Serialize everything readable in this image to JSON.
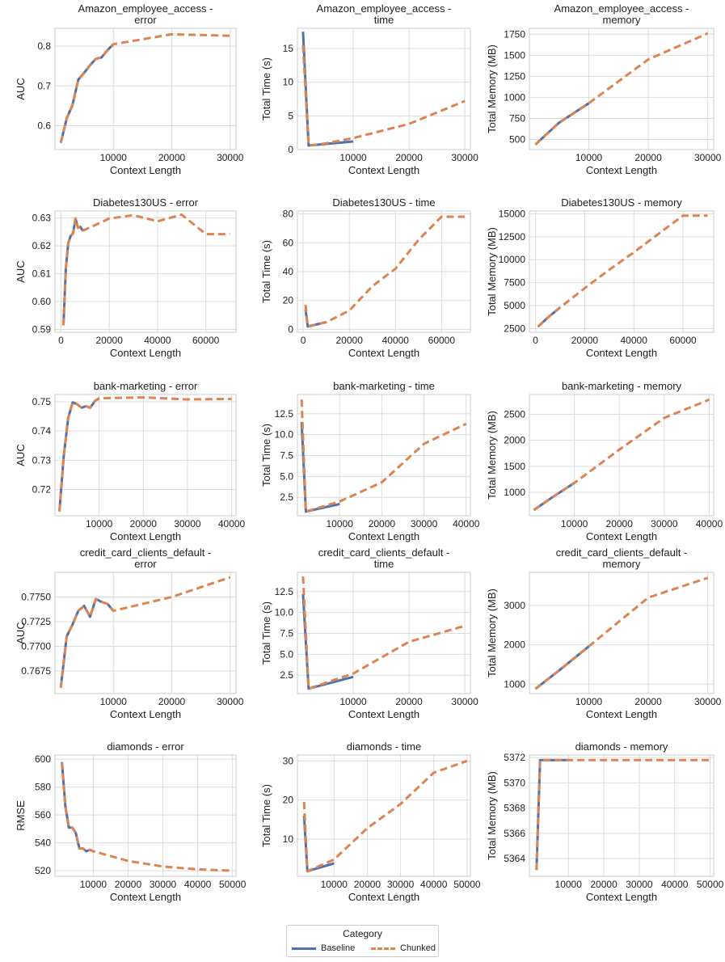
{
  "colors": {
    "baseline": "#4c72b0",
    "chunked": "#dd8452",
    "grid": "#dddddd",
    "axis": "#cccccc"
  },
  "legend": {
    "title": "Category",
    "baseline_label": "Baseline",
    "chunked_label": "Chunked"
  },
  "chart_data": [
    {
      "type": "line",
      "title": "Amazon_employee_access -\nerror",
      "xlabel": "Context Length",
      "ylabel": "AUC",
      "xlim": [
        0,
        31000
      ],
      "ylim": [
        0.54,
        0.845
      ],
      "xticks": [
        10000,
        20000,
        30000
      ],
      "yticks": [
        0.6,
        0.7,
        0.8
      ],
      "ytick_labels": [
        "0.6",
        "0.7",
        "0.8"
      ],
      "series": [
        {
          "name": "Baseline",
          "x": [
            1000,
            2000,
            3000,
            4000,
            5000,
            6000,
            7000,
            8000,
            9000,
            10000
          ],
          "y": [
            0.557,
            0.618,
            0.652,
            0.716,
            0.733,
            0.752,
            0.768,
            0.772,
            0.79,
            0.805
          ]
        },
        {
          "name": "Chunked",
          "x": [
            1000,
            2000,
            3000,
            4000,
            5000,
            6000,
            7000,
            8000,
            9000,
            10000,
            20000,
            30000
          ],
          "y": [
            0.557,
            0.618,
            0.652,
            0.716,
            0.733,
            0.752,
            0.768,
            0.772,
            0.79,
            0.805,
            0.83,
            0.826
          ]
        }
      ]
    },
    {
      "type": "line",
      "title": "Amazon_employee_access -\ntime",
      "xlabel": "Context Length",
      "ylabel": "Total Time (s)",
      "xlim": [
        0,
        31000
      ],
      "ylim": [
        0,
        18
      ],
      "xticks": [
        10000,
        20000,
        30000
      ],
      "yticks": [
        0,
        5,
        10,
        15
      ],
      "ytick_labels": [
        "0",
        "5",
        "10",
        "15"
      ],
      "series": [
        {
          "name": "Baseline",
          "x": [
            1000,
            2000,
            10000
          ],
          "y": [
            17.5,
            0.6,
            1.2
          ]
        },
        {
          "name": "Chunked",
          "x": [
            1000,
            2000,
            5000,
            10000,
            20000,
            30000
          ],
          "y": [
            15.5,
            0.6,
            0.9,
            1.7,
            3.8,
            7.2
          ]
        }
      ]
    },
    {
      "type": "line",
      "title": "Amazon_employee_access -\nmemory",
      "xlabel": "Context Length",
      "ylabel": "Total Memory (MB)",
      "xlim": [
        0,
        31000
      ],
      "ylim": [
        380,
        1820
      ],
      "xticks": [
        10000,
        20000,
        30000
      ],
      "yticks": [
        500,
        750,
        1000,
        1250,
        1500,
        1750
      ],
      "ytick_labels": [
        "500",
        "750",
        "1000",
        "1250",
        "1500",
        "1750"
      ],
      "series": [
        {
          "name": "Baseline",
          "x": [
            1000,
            5000,
            10000
          ],
          "y": [
            440,
            700,
            930
          ]
        },
        {
          "name": "Chunked",
          "x": [
            1000,
            5000,
            10000,
            20000,
            30000
          ],
          "y": [
            440,
            700,
            930,
            1450,
            1760
          ]
        }
      ]
    },
    {
      "type": "line",
      "title": "Diabetes130US - error",
      "xlabel": "Context Length",
      "ylabel": "AUC",
      "xlim": [
        -2500,
        72500
      ],
      "ylim": [
        0.589,
        0.6325
      ],
      "xticks": [
        0,
        20000,
        40000,
        60000
      ],
      "yticks": [
        0.59,
        0.6,
        0.61,
        0.62,
        0.63
      ],
      "ytick_labels": [
        "0.59",
        "0.60",
        "0.61",
        "0.62",
        "0.63"
      ],
      "series": [
        {
          "name": "Baseline",
          "x": [
            1000,
            2000,
            3000,
            4000,
            5000,
            6000,
            7000,
            8000,
            9000,
            10000
          ],
          "y": [
            0.5915,
            0.6115,
            0.621,
            0.6235,
            0.6245,
            0.6298,
            0.6265,
            0.6268,
            0.6255,
            0.6258
          ]
        },
        {
          "name": "Chunked",
          "x": [
            1000,
            2000,
            3000,
            4000,
            5000,
            6000,
            7000,
            8000,
            9000,
            10000,
            20000,
            30000,
            40000,
            50000,
            60000,
            70000
          ],
          "y": [
            0.5915,
            0.6115,
            0.621,
            0.6235,
            0.6245,
            0.6298,
            0.6265,
            0.6268,
            0.6255,
            0.6258,
            0.6298,
            0.631,
            0.6288,
            0.6312,
            0.6242,
            0.6242
          ]
        }
      ]
    },
    {
      "type": "line",
      "title": "Diabetes130US - time",
      "xlabel": "Context Length",
      "ylabel": "Total Time (s)",
      "xlim": [
        -2500,
        72500
      ],
      "ylim": [
        -2,
        82
      ],
      "xticks": [
        0,
        20000,
        40000,
        60000
      ],
      "yticks": [
        0,
        20,
        40,
        60,
        80
      ],
      "ytick_labels": [
        "0",
        "20",
        "40",
        "60",
        "80"
      ],
      "series": [
        {
          "name": "Baseline",
          "x": [
            1000,
            2000,
            10000
          ],
          "y": [
            14,
            2,
            5
          ]
        },
        {
          "name": "Chunked",
          "x": [
            1000,
            2000,
            10000,
            20000,
            30000,
            40000,
            50000,
            60000,
            70000
          ],
          "y": [
            17,
            2,
            5,
            13,
            30,
            42,
            62,
            78,
            78
          ]
        }
      ]
    },
    {
      "type": "line",
      "title": "Diabetes130US - memory",
      "xlabel": "Context Length",
      "ylabel": "Total Memory (MB)",
      "xlim": [
        -2500,
        72500
      ],
      "ylim": [
        2100,
        15300
      ],
      "xticks": [
        0,
        20000,
        40000,
        60000
      ],
      "yticks": [
        2500,
        5000,
        7500,
        10000,
        12500,
        15000
      ],
      "ytick_labels": [
        "2500",
        "5000",
        "7500",
        "10000",
        "12500",
        "15000"
      ],
      "series": [
        {
          "name": "Baseline",
          "x": [
            1000,
            5000,
            10000
          ],
          "y": [
            2700,
            3700,
            4800
          ]
        },
        {
          "name": "Chunked",
          "x": [
            1000,
            5000,
            10000,
            20000,
            30000,
            40000,
            50000,
            60000,
            70000
          ],
          "y": [
            2700,
            3700,
            4800,
            6900,
            8900,
            10800,
            12800,
            14800,
            14800
          ]
        }
      ]
    },
    {
      "type": "line",
      "title": "bank-marketing - error",
      "xlabel": "Context Length",
      "ylabel": "AUC",
      "xlim": [
        0,
        41000
      ],
      "ylim": [
        0.711,
        0.7525
      ],
      "xticks": [
        10000,
        20000,
        30000,
        40000
      ],
      "yticks": [
        0.72,
        0.73,
        0.74,
        0.75
      ],
      "ytick_labels": [
        "0.72",
        "0.73",
        "0.74",
        "0.75"
      ],
      "series": [
        {
          "name": "Baseline",
          "x": [
            1000,
            2000,
            3000,
            4000,
            5000,
            6000,
            7000,
            8000,
            9000,
            10000
          ],
          "y": [
            0.7125,
            0.7315,
            0.7445,
            0.7498,
            0.7492,
            0.748,
            0.7485,
            0.748,
            0.7502,
            0.7512
          ]
        },
        {
          "name": "Chunked",
          "x": [
            1000,
            2000,
            3000,
            4000,
            5000,
            6000,
            7000,
            8000,
            9000,
            10000,
            20000,
            30000,
            40000
          ],
          "y": [
            0.7125,
            0.7315,
            0.7445,
            0.7498,
            0.7492,
            0.748,
            0.7485,
            0.748,
            0.7502,
            0.7512,
            0.7515,
            0.7508,
            0.751
          ]
        }
      ]
    },
    {
      "type": "line",
      "title": "bank-marketing - time",
      "xlabel": "Context Length",
      "ylabel": "Total Time (s)",
      "xlim": [
        0,
        41000
      ],
      "ylim": [
        0.3,
        14.8
      ],
      "xticks": [
        10000,
        20000,
        30000,
        40000
      ],
      "yticks": [
        2.5,
        5.0,
        7.5,
        10.0,
        12.5
      ],
      "ytick_labels": [
        "2.5",
        "5.0",
        "7.5",
        "10.0",
        "12.5"
      ],
      "series": [
        {
          "name": "Baseline",
          "x": [
            1000,
            2000,
            10000
          ],
          "y": [
            11.5,
            0.8,
            1.7
          ]
        },
        {
          "name": "Chunked",
          "x": [
            1000,
            2000,
            10000,
            20000,
            30000,
            40000
          ],
          "y": [
            14.2,
            0.8,
            2.0,
            4.3,
            8.9,
            11.3
          ]
        }
      ]
    },
    {
      "type": "line",
      "title": "bank-marketing - memory",
      "xlabel": "Context Length",
      "ylabel": "Total Memory (MB)",
      "xlim": [
        0,
        41000
      ],
      "ylim": [
        550,
        2880
      ],
      "xticks": [
        10000,
        20000,
        30000,
        40000
      ],
      "yticks": [
        1000,
        1500,
        2000,
        2500
      ],
      "ytick_labels": [
        "1000",
        "1500",
        "2000",
        "2500"
      ],
      "series": [
        {
          "name": "Baseline",
          "x": [
            1000,
            5000,
            10000
          ],
          "y": [
            660,
            900,
            1180
          ]
        },
        {
          "name": "Chunked",
          "x": [
            1000,
            5000,
            10000,
            20000,
            30000,
            40000
          ],
          "y": [
            660,
            900,
            1180,
            1820,
            2430,
            2780
          ]
        }
      ]
    },
    {
      "type": "line",
      "title": "credit_card_clients_default -\nerror",
      "xlabel": "Context Length",
      "ylabel": "AUC",
      "xlim": [
        0,
        31000
      ],
      "ylim": [
        0.7652,
        0.7775
      ],
      "xticks": [
        10000,
        20000,
        30000
      ],
      "yticks": [
        0.7675,
        0.77,
        0.7725,
        0.775
      ],
      "ytick_labels": [
        "0.7675",
        "0.7700",
        "0.7725",
        "0.7750"
      ],
      "series": [
        {
          "name": "Baseline",
          "x": [
            1000,
            2000,
            3000,
            4000,
            5000,
            6000,
            7000,
            8000,
            9000,
            10000
          ],
          "y": [
            0.7658,
            0.771,
            0.7722,
            0.7736,
            0.7741,
            0.773,
            0.7748,
            0.7745,
            0.7743,
            0.7736
          ]
        },
        {
          "name": "Chunked",
          "x": [
            1000,
            2000,
            3000,
            4000,
            5000,
            6000,
            7000,
            8000,
            9000,
            10000,
            20000,
            30000
          ],
          "y": [
            0.7658,
            0.771,
            0.7722,
            0.7736,
            0.7741,
            0.773,
            0.7748,
            0.7745,
            0.7743,
            0.7736,
            0.775,
            0.777
          ]
        }
      ]
    },
    {
      "type": "line",
      "title": "credit_card_clients_default -\ntime",
      "xlabel": "Context Length",
      "ylabel": "Total Time (s)",
      "xlim": [
        0,
        31000
      ],
      "ylim": [
        0.3,
        14.8
      ],
      "xticks": [
        10000,
        20000,
        30000
      ],
      "yticks": [
        2.5,
        5.0,
        7.5,
        10.0,
        12.5
      ],
      "ytick_labels": [
        "2.5",
        "5.0",
        "7.5",
        "10.0",
        "12.5"
      ],
      "series": [
        {
          "name": "Baseline",
          "x": [
            1000,
            2000,
            10000
          ],
          "y": [
            12.2,
            0.9,
            2.3
          ]
        },
        {
          "name": "Chunked",
          "x": [
            1000,
            2000,
            10000,
            20000,
            30000
          ],
          "y": [
            14.3,
            0.9,
            2.7,
            6.5,
            8.4
          ]
        }
      ]
    },
    {
      "type": "line",
      "title": "credit_card_clients_default -\nmemory",
      "xlabel": "Context Length",
      "ylabel": "Total Memory (MB)",
      "xlim": [
        0,
        31000
      ],
      "ylim": [
        760,
        3840
      ],
      "xticks": [
        10000,
        20000,
        30000
      ],
      "yticks": [
        1000,
        2000,
        3000
      ],
      "ytick_labels": [
        "1000",
        "2000",
        "3000"
      ],
      "series": [
        {
          "name": "Baseline",
          "x": [
            1000,
            5000,
            10000
          ],
          "y": [
            880,
            1350,
            1960
          ]
        },
        {
          "name": "Chunked",
          "x": [
            1000,
            5000,
            10000,
            20000,
            30000
          ],
          "y": [
            880,
            1350,
            1960,
            3200,
            3700
          ]
        }
      ]
    },
    {
      "type": "line",
      "title": "diamonds - error",
      "xlabel": "Context Length",
      "ylabel": "RMSE",
      "xlim": [
        -1000,
        51000
      ],
      "ylim": [
        516,
        603
      ],
      "xticks": [
        10000,
        20000,
        30000,
        40000,
        50000
      ],
      "yticks": [
        520,
        540,
        560,
        580,
        600
      ],
      "ytick_labels": [
        "520",
        "540",
        "560",
        "580",
        "600"
      ],
      "series": [
        {
          "name": "Baseline",
          "x": [
            1000,
            2000,
            3000,
            4000,
            5000,
            6000,
            7000,
            8000,
            9000,
            10000
          ],
          "y": [
            598,
            566,
            551,
            551,
            547,
            536,
            536,
            534,
            535,
            534
          ]
        },
        {
          "name": "Chunked",
          "x": [
            1000,
            2000,
            3000,
            4000,
            5000,
            6000,
            7000,
            8000,
            9000,
            10000,
            20000,
            30000,
            40000,
            50000
          ],
          "y": [
            598,
            566,
            551,
            551,
            547,
            536,
            536,
            534,
            535,
            534,
            527,
            523,
            521,
            520
          ]
        }
      ]
    },
    {
      "type": "line",
      "title": "diamonds - time",
      "xlabel": "Context Length",
      "ylabel": "Total Time (s)",
      "xlim": [
        -1000,
        51000
      ],
      "ylim": [
        0.5,
        31.5
      ],
      "xticks": [
        10000,
        20000,
        30000,
        40000,
        50000
      ],
      "yticks": [
        10,
        20,
        30
      ],
      "ytick_labels": [
        "10",
        "20",
        "30"
      ],
      "series": [
        {
          "name": "Baseline",
          "x": [
            1000,
            2000,
            10000
          ],
          "y": [
            16,
            1.8,
            3.8
          ]
        },
        {
          "name": "Chunked",
          "x": [
            1000,
            2000,
            10000,
            20000,
            30000,
            40000,
            50000
          ],
          "y": [
            19.5,
            1.8,
            4.8,
            12.8,
            19,
            27,
            30
          ]
        }
      ]
    },
    {
      "type": "line",
      "title": "diamonds - memory",
      "xlabel": "Context Length",
      "ylabel": "Total Memory (MB)",
      "xlim": [
        -1000,
        51000
      ],
      "ylim": [
        5362.6,
        5372.2
      ],
      "xticks": [
        10000,
        20000,
        30000,
        40000,
        50000
      ],
      "yticks": [
        5364,
        5366,
        5368,
        5370,
        5372
      ],
      "ytick_labels": [
        "5364",
        "5366",
        "5368",
        "5370",
        "5372"
      ],
      "series": [
        {
          "name": "Baseline",
          "x": [
            1000,
            2000,
            10000
          ],
          "y": [
            5363.1,
            5371.8,
            5371.8
          ]
        },
        {
          "name": "Chunked",
          "x": [
            1000,
            2000,
            10000,
            20000,
            30000,
            40000,
            50000
          ],
          "y": [
            5363.1,
            5371.8,
            5371.8,
            5371.8,
            5371.8,
            5371.8,
            5371.8
          ]
        }
      ]
    }
  ]
}
